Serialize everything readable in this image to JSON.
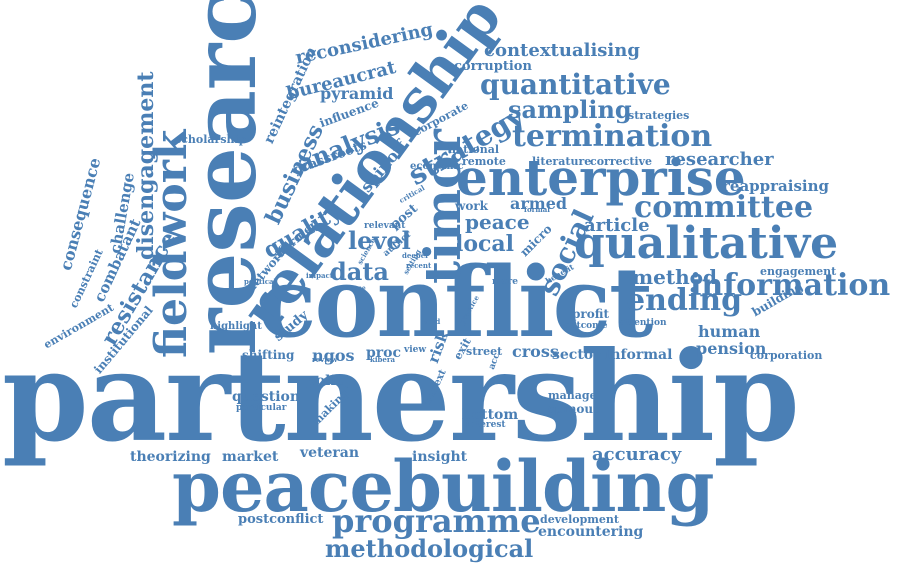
{
  "color": "#4a7fb5",
  "words": [
    "partnership",
    "peacebuilding",
    "conflict",
    "research",
    "relationship",
    "enterprise",
    "qualitative",
    "timor",
    "fieldwork",
    "programme",
    "methodological",
    "termination",
    "quantitative",
    "committee",
    "information",
    "ending",
    "strategy",
    "analysis",
    "sampling",
    "business",
    "quality",
    "disengagement",
    "resistance",
    "social",
    "data",
    "level",
    "local",
    "peace",
    "method",
    "researcher",
    "reappraising",
    "contextualising",
    "corruption",
    "bureaucrat",
    "reconsidering",
    "reintegration",
    "pyramid",
    "influence",
    "scholarship",
    "grassroots",
    "spinoff",
    "corporate",
    "national",
    "remote",
    "literature",
    "corrective",
    "strategies",
    "economic",
    "armed",
    "work",
    "article",
    "consequence",
    "challenge",
    "combatant",
    "constraint",
    "environment",
    "institutional",
    "network",
    "former",
    "post",
    "relevant",
    "micro",
    "profit",
    "outcome",
    "human",
    "pension",
    "corporation",
    "engagement",
    "building",
    "attention",
    "highlight",
    "shifting",
    "study",
    "ngos",
    "proc",
    "risk",
    "exit",
    "street",
    "cross",
    "sector",
    "informal",
    "question",
    "policy",
    "particular",
    "making",
    "bottom",
    "manage",
    "spinout",
    "interest",
    "context",
    "accuracy",
    "theorizing",
    "market",
    "veteran",
    "insight",
    "postconflict",
    "development",
    "encountering",
    "more",
    "benefit",
    "political",
    "impact",
    "shape",
    "view",
    "review",
    "author",
    "deeper",
    "science",
    "formal",
    "recent",
    "void",
    "kibera",
    "acc",
    "critical",
    "setting",
    "practice"
  ]
}
